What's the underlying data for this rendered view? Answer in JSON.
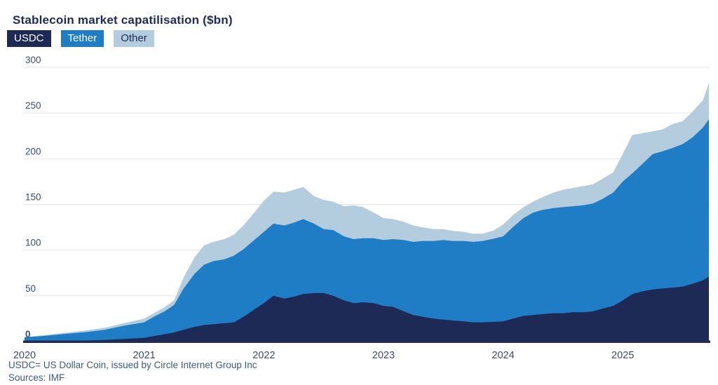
{
  "title": "Stablecoin market capatilisation ($bn)",
  "legend": [
    {
      "label": "USDC",
      "color": "#1e2a56",
      "text_color": "#ffffff"
    },
    {
      "label": "Tether",
      "color": "#1f7dc5",
      "text_color": "#ffffff"
    },
    {
      "label": "Other",
      "color": "#b4cdde",
      "text_color": "#1e2a56"
    }
  ],
  "footnote": "USDC= US Dollar Coin, issued by Circle Internet Group Inc",
  "source": "Sources: IMF",
  "chart_data": {
    "type": "area",
    "stacked": true,
    "title": "Stablecoin market capatilisation ($bn)",
    "xlabel": "",
    "ylabel": "",
    "grid": "horizontal",
    "legend_position": "top-left",
    "xlim": [
      2020,
      2025.72
    ],
    "ylim": [
      0,
      300
    ],
    "yticks": [
      0,
      50,
      100,
      150,
      200,
      250,
      300
    ],
    "xticks": [
      2020,
      2021,
      2022,
      2023,
      2024,
      2025
    ],
    "colors": {
      "grid": "#e3e5ea",
      "axis": "#212b56",
      "tick_label": "#3e4a70"
    },
    "x": [
      2020.0,
      2020.17,
      2020.33,
      2020.5,
      2020.67,
      2020.83,
      2021.0,
      2021.08,
      2021.17,
      2021.25,
      2021.33,
      2021.42,
      2021.5,
      2021.58,
      2021.67,
      2021.75,
      2021.83,
      2021.92,
      2022.0,
      2022.08,
      2022.17,
      2022.25,
      2022.33,
      2022.42,
      2022.5,
      2022.58,
      2022.67,
      2022.75,
      2022.83,
      2022.92,
      2023.0,
      2023.08,
      2023.17,
      2023.25,
      2023.33,
      2023.42,
      2023.5,
      2023.58,
      2023.67,
      2023.75,
      2023.83,
      2023.92,
      2024.0,
      2024.08,
      2024.17,
      2024.25,
      2024.33,
      2024.42,
      2024.5,
      2024.58,
      2024.67,
      2024.75,
      2024.83,
      2024.92,
      2025.0,
      2025.08,
      2025.17,
      2025.25,
      2025.33,
      2025.42,
      2025.5,
      2025.58,
      2025.67,
      2025.72
    ],
    "series": [
      {
        "name": "USDC",
        "color": "#1e2a56",
        "values": [
          0.5,
          0.7,
          0.8,
          1.1,
          1.8,
          2.8,
          4,
          6,
          8,
          10,
          13,
          16,
          18,
          19,
          20,
          21,
          27,
          35,
          42,
          50,
          47,
          49,
          52,
          53,
          53,
          50,
          45,
          42,
          43,
          42,
          39,
          38,
          33,
          29,
          27,
          25,
          24,
          23,
          22,
          21,
          21,
          21.5,
          22,
          25,
          28,
          29,
          30,
          31,
          31,
          32,
          32,
          33,
          36,
          39,
          45,
          52,
          55,
          57,
          58,
          59,
          60,
          63,
          67,
          71
        ]
      },
      {
        "name": "Tether",
        "color": "#1f7dc5",
        "values": [
          4,
          5.5,
          7.5,
          9,
          11,
          14.5,
          17,
          21,
          25,
          30,
          45,
          58,
          66,
          69,
          70,
          73,
          74,
          76,
          78,
          79,
          80,
          81,
          82,
          76,
          70,
          72,
          70,
          70,
          70,
          71,
          72,
          74,
          78,
          80,
          83,
          85,
          87,
          87,
          88,
          88,
          89,
          91,
          93,
          100,
          107,
          112,
          114,
          115,
          116,
          116,
          117,
          118,
          120,
          124,
          130,
          132,
          140,
          148,
          150,
          153,
          156,
          160,
          167,
          172
        ]
      },
      {
        "name": "Other",
        "color": "#b4cdde",
        "values": [
          0.5,
          0.8,
          1.2,
          1.9,
          2.2,
          2.7,
          4,
          4,
          4.5,
          5,
          12,
          18,
          21,
          21,
          22,
          23,
          26,
          30,
          34,
          35,
          36,
          36,
          35,
          30,
          32,
          31,
          33,
          37,
          34,
          28,
          24,
          22,
          20,
          18,
          15,
          13,
          12,
          11,
          10,
          9,
          8,
          9,
          13,
          13,
          12,
          12,
          14,
          17,
          19,
          20,
          21,
          21,
          22,
          22,
          30,
          42,
          33,
          25,
          24,
          26,
          25,
          28,
          30,
          40
        ]
      }
    ]
  }
}
